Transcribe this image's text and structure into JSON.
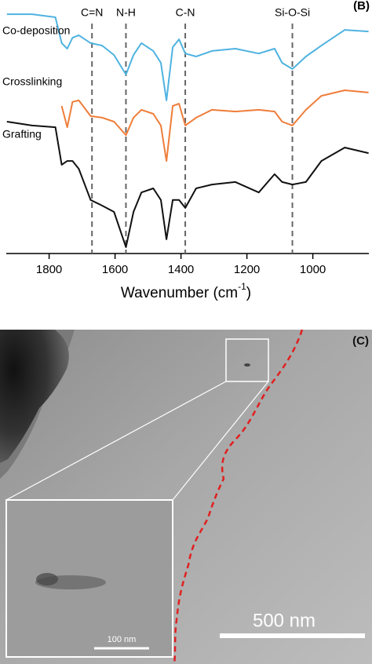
{
  "chart_data": {
    "type": "line",
    "panel_label": "(B)",
    "xlabel_parts": [
      "Wavenumber (cm",
      "-1",
      ")"
    ],
    "x": [
      1928,
      1852,
      1781,
      1762,
      1745,
      1729,
      1710,
      1674,
      1639,
      1603,
      1567,
      1544,
      1520,
      1484,
      1461,
      1444,
      1425,
      1406,
      1387,
      1354,
      1306,
      1235,
      1164,
      1116,
      1093,
      1062,
      1021,
      974,
      903,
      831
    ],
    "xlim": [
      1930,
      830
    ],
    "xticks": [
      1800,
      1600,
      1400,
      1200,
      1000
    ],
    "ylim": [
      0,
      100
    ],
    "series": [
      {
        "name": "Co-deposition",
        "color": "#4fb3e0",
        "values": [
          94.4,
          94.4,
          93.2,
          83.0,
          80.8,
          85.1,
          86.1,
          83.0,
          82.0,
          78.3,
          70.6,
          78.3,
          83.0,
          79.9,
          75.2,
          60.4,
          81.4,
          84.5,
          78.9,
          77.7,
          79.9,
          80.8,
          78.9,
          80.8,
          75.2,
          72.8,
          77.7,
          82.0,
          88.2,
          87.6
        ]
      },
      {
        "name": "Crosslinking",
        "color": "#ef7d3a",
        "values": [
          null,
          null,
          null,
          58.2,
          49.8,
          59.8,
          60.4,
          54.2,
          53.6,
          52.0,
          46.7,
          53.6,
          56.7,
          55.1,
          50.5,
          36.5,
          58.2,
          59.1,
          50.5,
          53.6,
          56.7,
          56.0,
          56.7,
          56.0,
          52.0,
          50.5,
          56.7,
          62.2,
          64.4,
          63.5
        ]
      },
      {
        "name": "Grafting",
        "color": "#111111",
        "values": [
          52.0,
          50.5,
          49.8,
          35.0,
          36.5,
          36.5,
          33.4,
          21.1,
          18.9,
          16.4,
          2.5,
          16.4,
          24.1,
          25.7,
          21.1,
          5.6,
          21.1,
          21.1,
          18.0,
          25.7,
          27.2,
          28.2,
          24.1,
          31.3,
          28.2,
          27.2,
          28.2,
          36.5,
          41.8,
          39.6
        ]
      }
    ],
    "annotations": [
      {
        "label": "C=N",
        "x": 1670
      },
      {
        "label": "N-H",
        "x": 1567
      },
      {
        "label": "C-N",
        "x": 1387
      },
      {
        "label": "Si-O-Si",
        "x": 1062
      }
    ]
  },
  "image": {
    "panel_label": "(C)",
    "scale_bar": "500 nm",
    "inset_scale_bar": "100 nm"
  }
}
